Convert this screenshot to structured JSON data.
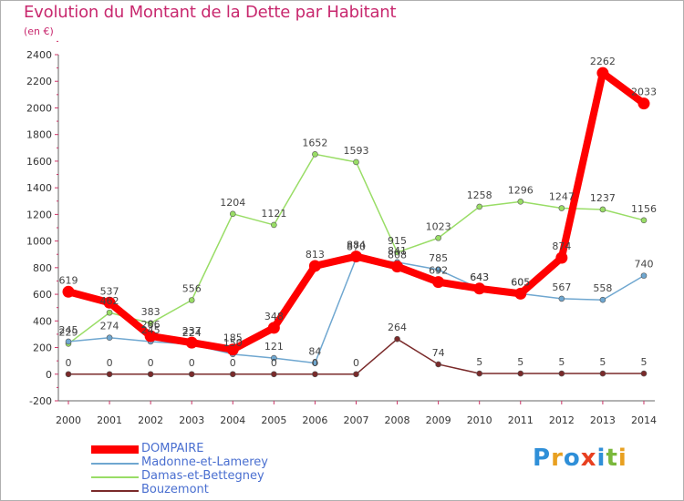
{
  "title": "Evolution du Montant de la Dette par Habitant",
  "subtitle": "(en €)",
  "brand": {
    "text": "Proxiti",
    "letters": [
      {
        "ch": "P",
        "color": "#2f8fd8"
      },
      {
        "ch": "r",
        "color": "#e8a020"
      },
      {
        "ch": "o",
        "color": "#2f8fd8"
      },
      {
        "ch": "x",
        "color": "#e84020"
      },
      {
        "ch": "i",
        "color": "#2f8fd8"
      },
      {
        "ch": "t",
        "color": "#7ab83c"
      },
      {
        "ch": "i",
        "color": "#e8a020"
      }
    ]
  },
  "chart_data": {
    "type": "line",
    "title": "Evolution du Montant de la Dette par Habitant",
    "subtitle": "(en €)",
    "x": [
      "2000",
      "2001",
      "2002",
      "2003",
      "2004",
      "2005",
      "2006",
      "2007",
      "2008",
      "2009",
      "2010",
      "2011",
      "2012",
      "2013",
      "2014"
    ],
    "ylim": [
      -200,
      2400
    ],
    "yticks": [
      "-200",
      "0",
      "200",
      "400",
      "600",
      "800",
      "1000",
      "1200",
      "1400",
      "1600",
      "1800",
      "2000",
      "2200",
      "2400"
    ],
    "grid": false,
    "legend_position": "bottom-left",
    "series": [
      {
        "name": "DOMPAIRE",
        "color": "#ff0000",
        "width": 8,
        "values": [
          619,
          537,
          286,
          237,
          185,
          348,
          813,
          884,
          808,
          692,
          643,
          605,
          874,
          2262,
          2033
        ],
        "labels": [
          "619",
          "537",
          "286",
          "237",
          "185",
          "348",
          "813",
          "884",
          "808",
          "692",
          "643",
          "605",
          "874",
          "2262",
          "2033"
        ]
      },
      {
        "name": "Madonne-et-Lamerey",
        "color": "#6fa7d0",
        "width": 1.5,
        "values": [
          245,
          274,
          245,
          224,
          150,
          121,
          84,
          870,
          841,
          785,
          643,
          605,
          567,
          558,
          740
        ],
        "labels": [
          "245",
          "274",
          "245",
          "224",
          "150",
          "121",
          "84",
          "870",
          "841",
          "785",
          "643",
          "605",
          "567",
          "558",
          "740"
        ]
      },
      {
        "name": "Damas-et-Bettegney",
        "color": "#99dd66",
        "width": 1.5,
        "values": [
          229,
          462,
          383,
          556,
          1204,
          1121,
          1652,
          1593,
          915,
          1023,
          1258,
          1296,
          1247,
          1237,
          1156
        ],
        "labels": [
          "229",
          "462",
          "383",
          "556",
          "1204",
          "1121",
          "1652",
          "1593",
          "915",
          "1023",
          "1258",
          "1296",
          "1247",
          "1237",
          "1156"
        ]
      },
      {
        "name": "Bouzemont",
        "color": "#7a2a2a",
        "width": 1.5,
        "values": [
          0,
          0,
          0,
          0,
          0,
          0,
          0,
          0,
          264,
          74,
          5,
          5,
          5,
          5,
          5
        ],
        "labels": [
          "0",
          "0",
          "0",
          "0",
          "0",
          "0",
          "0",
          "0",
          "264",
          "74",
          "5",
          "5",
          "5",
          "5",
          "5"
        ]
      }
    ]
  },
  "legend": [
    {
      "label": "DOMPAIRE",
      "color": "#ff0000"
    },
    {
      "label": "Madonne-et-Lamerey",
      "color": "#6fa7d0"
    },
    {
      "label": "Damas-et-Bettegney",
      "color": "#99dd66"
    },
    {
      "label": "Bouzemont",
      "color": "#7a2a2a"
    }
  ]
}
